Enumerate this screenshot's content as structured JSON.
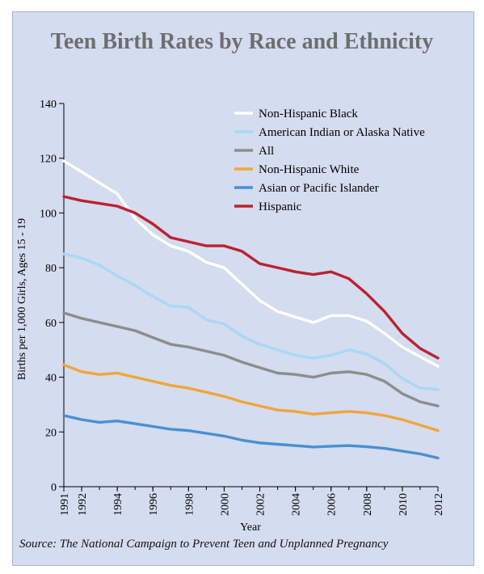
{
  "chart_data": {
    "type": "line",
    "title": "Teen Birth Rates by Race and Ethnicity",
    "xlabel": "Year",
    "ylabel": "Births per 1,000 Girls, Ages 15 - 19",
    "source": "Source: The National Campaign to Prevent Teen and Unplanned Pregnancy",
    "ylim": [
      0,
      140
    ],
    "yticks": [
      0,
      20,
      40,
      60,
      80,
      100,
      120,
      140
    ],
    "xlim": [
      1991,
      2012
    ],
    "xticks": [
      1991,
      1992,
      1994,
      1996,
      1998,
      2000,
      2002,
      2004,
      2006,
      2008,
      2010,
      2012
    ],
    "x": [
      1991,
      1992,
      1993,
      1994,
      1995,
      1996,
      1997,
      1998,
      1999,
      2000,
      2001,
      2002,
      2003,
      2004,
      2005,
      2006,
      2007,
      2008,
      2009,
      2010,
      2011,
      2012
    ],
    "grid": false,
    "legend": "top-right",
    "series": [
      {
        "name": "Non-Hispanic Black",
        "color": "#ffffff",
        "values": [
          119,
          115,
          111,
          107,
          98,
          92,
          88,
          86,
          82,
          80,
          74,
          68,
          64,
          62,
          60,
          62.5,
          62.5,
          60.5,
          56,
          51,
          47.5,
          44
        ]
      },
      {
        "name": "American Indian or Alaska  Native",
        "color": "#a9d8f4",
        "values": [
          85,
          83.5,
          81,
          77,
          73.5,
          69.5,
          66,
          65.5,
          61,
          59.5,
          55,
          52,
          50,
          48,
          47,
          48,
          50,
          48.5,
          45,
          39.5,
          36,
          35.5
        ]
      },
      {
        "name": "All",
        "color": "#8d8d8d",
        "values": [
          63.5,
          61.5,
          60,
          58.5,
          57,
          54.5,
          52,
          51,
          49.5,
          48,
          45.5,
          43.5,
          41.5,
          41,
          40,
          41.5,
          42,
          41,
          38.5,
          34,
          31,
          29.5
        ]
      },
      {
        "name": "Non-Hispanic White",
        "color": "#f2a53a",
        "values": [
          44.5,
          42,
          41,
          41.5,
          40,
          38.5,
          37,
          36,
          34.5,
          33,
          31,
          29.5,
          28,
          27.5,
          26.5,
          27,
          27.5,
          27,
          26,
          24.5,
          22.5,
          20.5
        ]
      },
      {
        "name": "Asian or Pacific Islander",
        "color": "#4a8fd3",
        "values": [
          26,
          24.5,
          23.5,
          24,
          23,
          22,
          21,
          20.5,
          19.5,
          18.5,
          17,
          16,
          15.5,
          15,
          14.5,
          14.8,
          15,
          14.6,
          14,
          13,
          12,
          10.5
        ]
      },
      {
        "name": "Hispanic",
        "color": "#bb2230",
        "values": [
          106,
          104.5,
          103.5,
          102.5,
          100,
          96,
          91,
          89.5,
          88,
          88,
          86,
          81.5,
          80,
          78.5,
          77.5,
          78.5,
          76,
          70.5,
          64,
          56,
          50.5,
          47
        ]
      }
    ]
  }
}
